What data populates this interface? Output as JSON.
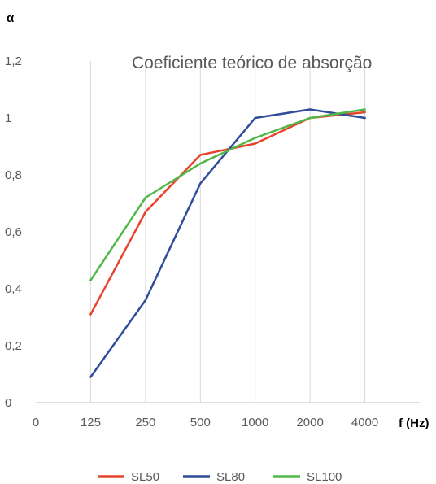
{
  "chart_data": {
    "type": "line",
    "title": "Coeficiente teórico de absorção",
    "xlabel": "f (Hz)",
    "ylabel": "α",
    "x_tick_labels": [
      "0",
      "125",
      "250",
      "500",
      "1000",
      "2000",
      "4000"
    ],
    "categories": [
      "125",
      "250",
      "500",
      "1000",
      "2000",
      "4000"
    ],
    "y_tick_labels": [
      "0",
      "0,2",
      "0,4",
      "0,6",
      "0,8",
      "1",
      "1,2"
    ],
    "ylim": [
      0,
      1.2
    ],
    "grid": "vertical",
    "legend": "bottom",
    "series": [
      {
        "name": "SL50",
        "color": "#e8432c",
        "values": [
          0.31,
          0.67,
          0.87,
          0.91,
          1.0,
          1.02
        ]
      },
      {
        "name": "SL80",
        "color": "#2f4b9a",
        "values": [
          0.09,
          0.36,
          0.77,
          1.0,
          1.03,
          1.0
        ]
      },
      {
        "name": "SL100",
        "color": "#4fb848",
        "values": [
          0.43,
          0.72,
          0.84,
          0.93,
          1.0,
          1.03
        ]
      }
    ]
  }
}
